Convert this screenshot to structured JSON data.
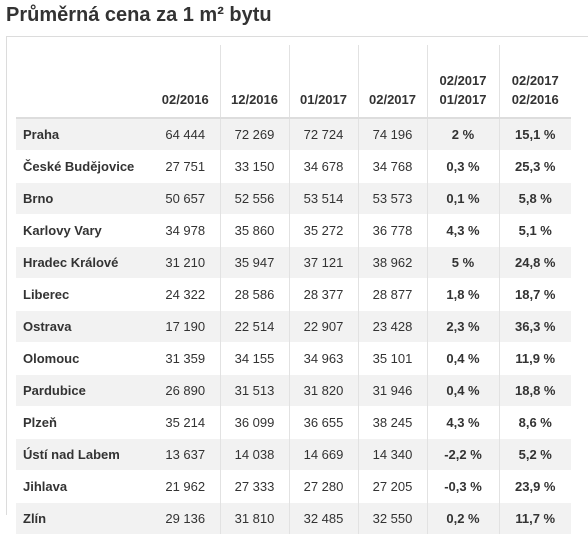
{
  "title": "Průměrná cena za 1 m² bytu",
  "headers": {
    "city": "",
    "h1": "02/2016",
    "h2": "12/2016",
    "h3": "01/2017",
    "h4": "02/2017",
    "h5_line1": "02/2017",
    "h5_line2": "01/2017",
    "h6_line1": "02/2017",
    "h6_line2": "02/2016"
  },
  "rows": [
    {
      "city": "Praha",
      "v1": "64 444",
      "v2": "72 269",
      "v3": "72 724",
      "v4": "74 196",
      "p1": "2 %",
      "p2": "15,1 %"
    },
    {
      "city": "České Budějovice",
      "v1": "27 751",
      "v2": "33 150",
      "v3": "34 678",
      "v4": "34 768",
      "p1": "0,3 %",
      "p2": "25,3 %"
    },
    {
      "city": "Brno",
      "v1": "50 657",
      "v2": "52 556",
      "v3": "53 514",
      "v4": "53 573",
      "p1": "0,1 %",
      "p2": "5,8 %"
    },
    {
      "city": "Karlovy Vary",
      "v1": "34 978",
      "v2": "35 860",
      "v3": "35 272",
      "v4": "36 778",
      "p1": "4,3 %",
      "p2": "5,1 %"
    },
    {
      "city": "Hradec Králové",
      "v1": "31 210",
      "v2": "35 947",
      "v3": "37 121",
      "v4": "38 962",
      "p1": "5 %",
      "p2": "24,8 %"
    },
    {
      "city": "Liberec",
      "v1": "24 322",
      "v2": "28 586",
      "v3": "28 377",
      "v4": "28 877",
      "p1": "1,8 %",
      "p2": "18,7 %"
    },
    {
      "city": "Ostrava",
      "v1": "17 190",
      "v2": "22 514",
      "v3": "22 907",
      "v4": "23 428",
      "p1": "2,3 %",
      "p2": "36,3 %"
    },
    {
      "city": "Olomouc",
      "v1": "31 359",
      "v2": "34 155",
      "v3": "34 963",
      "v4": "35 101",
      "p1": "0,4 %",
      "p2": "11,9 %"
    },
    {
      "city": "Pardubice",
      "v1": "26 890",
      "v2": "31 513",
      "v3": "31 820",
      "v4": "31 946",
      "p1": "0,4 %",
      "p2": "18,8 %"
    },
    {
      "city": "Plzeň",
      "v1": "35 214",
      "v2": "36 099",
      "v3": "36 655",
      "v4": "38 245",
      "p1": "4,3 %",
      "p2": "8,6 %"
    },
    {
      "city": "Ústí nad Labem",
      "v1": "13 637",
      "v2": "14 038",
      "v3": "14 669",
      "v4": "14 340",
      "p1": "-2,2 %",
      "p2": "5,2 %"
    },
    {
      "city": "Jihlava",
      "v1": "21 962",
      "v2": "27 333",
      "v3": "27 280",
      "v4": "27 205",
      "p1": "-0,3 %",
      "p2": "23,9 %"
    },
    {
      "city": "Zlín",
      "v1": "29 136",
      "v2": "31 810",
      "v3": "32 485",
      "v4": "32 550",
      "p1": "0,2 %",
      "p2": "11,7 %"
    }
  ]
}
